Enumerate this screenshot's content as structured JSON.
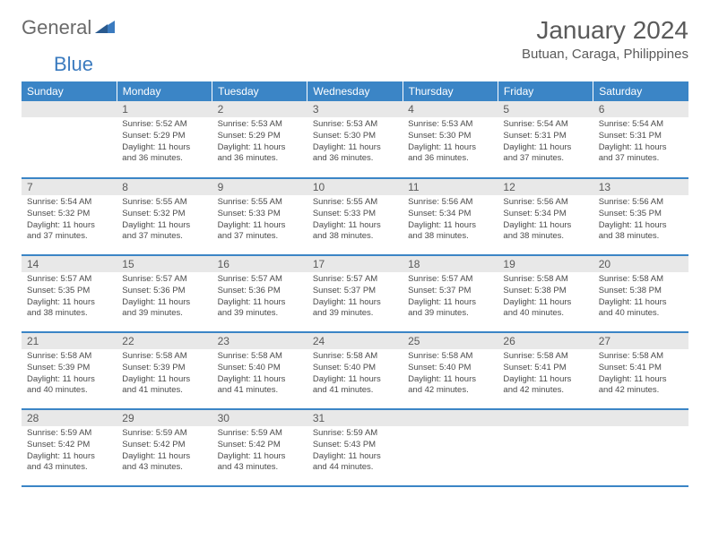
{
  "logo": {
    "part1": "General",
    "part2": "Blue"
  },
  "title": "January 2024",
  "location": "Butuan, Caraga, Philippines",
  "colors": {
    "header_bg": "#3b85c6",
    "header_text": "#ffffff",
    "daynum_bg": "#e8e8e8",
    "text": "#4a4a4a",
    "border": "#3b85c6",
    "logo_gray": "#6a6a6a",
    "logo_blue": "#3b7bbf"
  },
  "day_headers": [
    "Sunday",
    "Monday",
    "Tuesday",
    "Wednesday",
    "Thursday",
    "Friday",
    "Saturday"
  ],
  "weeks": [
    [
      {
        "num": "",
        "lines": []
      },
      {
        "num": "1",
        "lines": [
          "Sunrise: 5:52 AM",
          "Sunset: 5:29 PM",
          "Daylight: 11 hours",
          "and 36 minutes."
        ]
      },
      {
        "num": "2",
        "lines": [
          "Sunrise: 5:53 AM",
          "Sunset: 5:29 PM",
          "Daylight: 11 hours",
          "and 36 minutes."
        ]
      },
      {
        "num": "3",
        "lines": [
          "Sunrise: 5:53 AM",
          "Sunset: 5:30 PM",
          "Daylight: 11 hours",
          "and 36 minutes."
        ]
      },
      {
        "num": "4",
        "lines": [
          "Sunrise: 5:53 AM",
          "Sunset: 5:30 PM",
          "Daylight: 11 hours",
          "and 36 minutes."
        ]
      },
      {
        "num": "5",
        "lines": [
          "Sunrise: 5:54 AM",
          "Sunset: 5:31 PM",
          "Daylight: 11 hours",
          "and 37 minutes."
        ]
      },
      {
        "num": "6",
        "lines": [
          "Sunrise: 5:54 AM",
          "Sunset: 5:31 PM",
          "Daylight: 11 hours",
          "and 37 minutes."
        ]
      }
    ],
    [
      {
        "num": "7",
        "lines": [
          "Sunrise: 5:54 AM",
          "Sunset: 5:32 PM",
          "Daylight: 11 hours",
          "and 37 minutes."
        ]
      },
      {
        "num": "8",
        "lines": [
          "Sunrise: 5:55 AM",
          "Sunset: 5:32 PM",
          "Daylight: 11 hours",
          "and 37 minutes."
        ]
      },
      {
        "num": "9",
        "lines": [
          "Sunrise: 5:55 AM",
          "Sunset: 5:33 PM",
          "Daylight: 11 hours",
          "and 37 minutes."
        ]
      },
      {
        "num": "10",
        "lines": [
          "Sunrise: 5:55 AM",
          "Sunset: 5:33 PM",
          "Daylight: 11 hours",
          "and 38 minutes."
        ]
      },
      {
        "num": "11",
        "lines": [
          "Sunrise: 5:56 AM",
          "Sunset: 5:34 PM",
          "Daylight: 11 hours",
          "and 38 minutes."
        ]
      },
      {
        "num": "12",
        "lines": [
          "Sunrise: 5:56 AM",
          "Sunset: 5:34 PM",
          "Daylight: 11 hours",
          "and 38 minutes."
        ]
      },
      {
        "num": "13",
        "lines": [
          "Sunrise: 5:56 AM",
          "Sunset: 5:35 PM",
          "Daylight: 11 hours",
          "and 38 minutes."
        ]
      }
    ],
    [
      {
        "num": "14",
        "lines": [
          "Sunrise: 5:57 AM",
          "Sunset: 5:35 PM",
          "Daylight: 11 hours",
          "and 38 minutes."
        ]
      },
      {
        "num": "15",
        "lines": [
          "Sunrise: 5:57 AM",
          "Sunset: 5:36 PM",
          "Daylight: 11 hours",
          "and 39 minutes."
        ]
      },
      {
        "num": "16",
        "lines": [
          "Sunrise: 5:57 AM",
          "Sunset: 5:36 PM",
          "Daylight: 11 hours",
          "and 39 minutes."
        ]
      },
      {
        "num": "17",
        "lines": [
          "Sunrise: 5:57 AM",
          "Sunset: 5:37 PM",
          "Daylight: 11 hours",
          "and 39 minutes."
        ]
      },
      {
        "num": "18",
        "lines": [
          "Sunrise: 5:57 AM",
          "Sunset: 5:37 PM",
          "Daylight: 11 hours",
          "and 39 minutes."
        ]
      },
      {
        "num": "19",
        "lines": [
          "Sunrise: 5:58 AM",
          "Sunset: 5:38 PM",
          "Daylight: 11 hours",
          "and 40 minutes."
        ]
      },
      {
        "num": "20",
        "lines": [
          "Sunrise: 5:58 AM",
          "Sunset: 5:38 PM",
          "Daylight: 11 hours",
          "and 40 minutes."
        ]
      }
    ],
    [
      {
        "num": "21",
        "lines": [
          "Sunrise: 5:58 AM",
          "Sunset: 5:39 PM",
          "Daylight: 11 hours",
          "and 40 minutes."
        ]
      },
      {
        "num": "22",
        "lines": [
          "Sunrise: 5:58 AM",
          "Sunset: 5:39 PM",
          "Daylight: 11 hours",
          "and 41 minutes."
        ]
      },
      {
        "num": "23",
        "lines": [
          "Sunrise: 5:58 AM",
          "Sunset: 5:40 PM",
          "Daylight: 11 hours",
          "and 41 minutes."
        ]
      },
      {
        "num": "24",
        "lines": [
          "Sunrise: 5:58 AM",
          "Sunset: 5:40 PM",
          "Daylight: 11 hours",
          "and 41 minutes."
        ]
      },
      {
        "num": "25",
        "lines": [
          "Sunrise: 5:58 AM",
          "Sunset: 5:40 PM",
          "Daylight: 11 hours",
          "and 42 minutes."
        ]
      },
      {
        "num": "26",
        "lines": [
          "Sunrise: 5:58 AM",
          "Sunset: 5:41 PM",
          "Daylight: 11 hours",
          "and 42 minutes."
        ]
      },
      {
        "num": "27",
        "lines": [
          "Sunrise: 5:58 AM",
          "Sunset: 5:41 PM",
          "Daylight: 11 hours",
          "and 42 minutes."
        ]
      }
    ],
    [
      {
        "num": "28",
        "lines": [
          "Sunrise: 5:59 AM",
          "Sunset: 5:42 PM",
          "Daylight: 11 hours",
          "and 43 minutes."
        ]
      },
      {
        "num": "29",
        "lines": [
          "Sunrise: 5:59 AM",
          "Sunset: 5:42 PM",
          "Daylight: 11 hours",
          "and 43 minutes."
        ]
      },
      {
        "num": "30",
        "lines": [
          "Sunrise: 5:59 AM",
          "Sunset: 5:42 PM",
          "Daylight: 11 hours",
          "and 43 minutes."
        ]
      },
      {
        "num": "31",
        "lines": [
          "Sunrise: 5:59 AM",
          "Sunset: 5:43 PM",
          "Daylight: 11 hours",
          "and 44 minutes."
        ]
      },
      {
        "num": "",
        "lines": []
      },
      {
        "num": "",
        "lines": []
      },
      {
        "num": "",
        "lines": []
      }
    ]
  ]
}
